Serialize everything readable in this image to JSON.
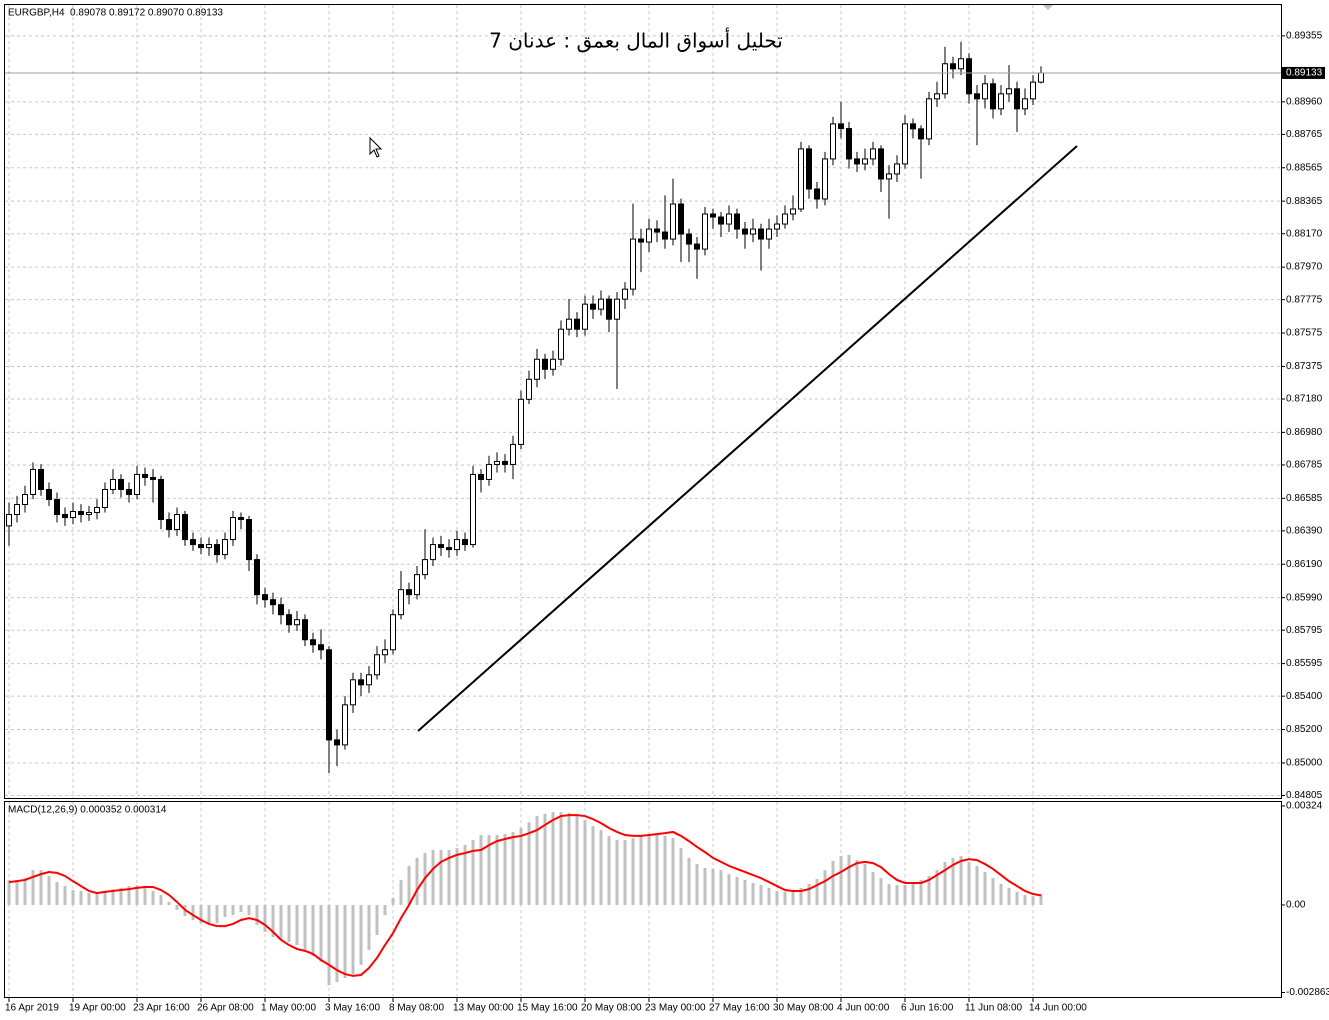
{
  "chart_data": [
    {
      "type": "candlestick",
      "title": "EURGBP,H4  0.89078 0.89172 0.89070 0.89133",
      "annotation": "تحليل أسواق المال بعمق : عدنان 7",
      "categories": [
        "16 Apr 2019",
        null,
        null,
        null,
        null,
        null,
        null,
        null,
        "19 Apr 00:00",
        null,
        null,
        null,
        null,
        null,
        null,
        null,
        "23 Apr 16:00",
        null,
        null,
        null,
        null,
        null,
        null,
        null,
        "26 Apr 08:00",
        null,
        null,
        null,
        null,
        null,
        null,
        null,
        "1 May 00:00",
        null,
        null,
        null,
        null,
        null,
        null,
        null,
        "3 May 16:00",
        null,
        null,
        null,
        null,
        null,
        null,
        null,
        "8 May 08:00",
        null,
        null,
        null,
        null,
        null,
        null,
        null,
        "13 May 00:00",
        null,
        null,
        null,
        null,
        null,
        null,
        null,
        "15 May 16:00",
        null,
        null,
        null,
        null,
        null,
        null,
        null,
        "20 May 08:00",
        null,
        null,
        null,
        null,
        null,
        null,
        null,
        "23 May 00:00",
        null,
        null,
        null,
        null,
        null,
        null,
        null,
        "27 May 16:00",
        null,
        null,
        null,
        null,
        null,
        null,
        null,
        "30 May 08:00",
        null,
        null,
        null,
        null,
        null,
        null,
        null,
        "4 Jun 00:00",
        null,
        null,
        null,
        null,
        null,
        null,
        null,
        "6 Jun 16:00",
        null,
        null,
        null,
        null,
        null,
        null,
        null,
        "11 Jun 08:00",
        null,
        null,
        null,
        null,
        null,
        null,
        null,
        "14 Jun 00:00",
        null
      ],
      "open": [
        0.8642,
        0.86488,
        0.86548,
        0.86608,
        0.86758,
        0.86638,
        0.86578,
        0.86488,
        0.8647,
        0.86506,
        0.86488,
        0.865,
        0.8653,
        0.86638,
        0.86698,
        0.86638,
        0.86608,
        0.86728,
        0.8671,
        0.86698,
        0.86458,
        0.86398,
        0.86488,
        0.86338,
        0.86308,
        0.8629,
        0.86308,
        0.86248,
        0.86338,
        0.8647,
        0.86458,
        0.86218,
        0.86008,
        0.85978,
        0.85948,
        0.85888,
        0.85828,
        0.85858,
        0.85738,
        0.85708,
        0.85678,
        0.85138,
        0.85108,
        0.85348,
        0.85498,
        0.85468,
        0.85528,
        0.85648,
        0.85678,
        0.85888,
        0.86038,
        0.86008,
        0.86128,
        0.86218,
        0.86308,
        0.8629,
        0.86278,
        0.86338,
        0.86308,
        0.86728,
        0.86698,
        0.86788,
        0.86806,
        0.86788,
        0.86908,
        0.87178,
        0.87298,
        0.87418,
        0.87358,
        0.87418,
        0.87598,
        0.87658,
        0.87598,
        0.87748,
        0.87718,
        0.87778,
        0.87658,
        0.87778,
        0.87838,
        0.88138,
        0.8812,
        0.88198,
        0.8818,
        0.88138,
        0.88348,
        0.88168,
        0.88108,
        0.88078,
        0.88288,
        0.8827,
        0.88228,
        0.88288,
        0.88198,
        0.88168,
        0.88198,
        0.88138,
        0.88198,
        0.88228,
        0.88288,
        0.88318,
        0.88678,
        0.88438,
        0.88378,
        0.88618,
        0.88828,
        0.888,
        0.88618,
        0.88588,
        0.88618,
        0.88678,
        0.88498,
        0.88528,
        0.88588,
        0.88828,
        0.88798,
        0.88738,
        0.88978,
        0.89008,
        0.89188,
        0.89158,
        0.89218,
        0.89008,
        0.88978,
        0.89068,
        0.88918,
        0.89008,
        0.89038,
        0.88918,
        0.88978,
        0.89078
      ],
      "high": [
        0.8656,
        0.866,
        0.8666,
        0.868,
        0.8679,
        0.8668,
        0.8662,
        0.8653,
        0.8656,
        0.8655,
        0.8654,
        0.8658,
        0.8668,
        0.8676,
        0.8673,
        0.8668,
        0.8678,
        0.8677,
        0.8676,
        0.8672,
        0.865,
        0.8653,
        0.8651,
        0.8638,
        0.8635,
        0.8635,
        0.8634,
        0.8638,
        0.8651,
        0.865,
        0.8648,
        0.8625,
        0.8605,
        0.8602,
        0.8599,
        0.8592,
        0.8591,
        0.8589,
        0.8578,
        0.858,
        0.857,
        0.852,
        0.854,
        0.8554,
        0.8554,
        0.8558,
        0.857,
        0.8574,
        0.8592,
        0.8615,
        0.8608,
        0.8618,
        0.864,
        0.8635,
        0.8636,
        0.8634,
        0.8639,
        0.8638,
        0.8678,
        0.8676,
        0.8684,
        0.8686,
        0.8685,
        0.8696,
        0.8723,
        0.8735,
        0.8748,
        0.8745,
        0.8747,
        0.8765,
        0.8778,
        0.877,
        0.878,
        0.878,
        0.8783,
        0.878,
        0.8782,
        0.8788,
        0.8835,
        0.882,
        0.8826,
        0.8825,
        0.884,
        0.885,
        0.8838,
        0.882,
        0.8815,
        0.8833,
        0.8832,
        0.883,
        0.8834,
        0.8832,
        0.8824,
        0.8826,
        0.8823,
        0.8826,
        0.8828,
        0.8834,
        0.884,
        0.8872,
        0.887,
        0.8848,
        0.8866,
        0.8887,
        0.8896,
        0.8884,
        0.8866,
        0.8868,
        0.8872,
        0.887,
        0.8858,
        0.8864,
        0.8888,
        0.8886,
        0.8882,
        0.8902,
        0.8908,
        0.8929,
        0.8923,
        0.8932,
        0.8925,
        0.8906,
        0.8912,
        0.891,
        0.8906,
        0.8918,
        0.8908,
        0.8904,
        0.8912,
        0.89172
      ],
      "low": [
        0.863,
        0.8644,
        0.865,
        0.8658,
        0.866,
        0.8654,
        0.8644,
        0.8642,
        0.8643,
        0.8644,
        0.8645,
        0.8646,
        0.865,
        0.8661,
        0.8659,
        0.8656,
        0.8658,
        0.8666,
        0.8656,
        0.864,
        0.8635,
        0.8636,
        0.863,
        0.8627,
        0.8625,
        0.8624,
        0.862,
        0.8622,
        0.863,
        0.864,
        0.8615,
        0.8595,
        0.8593,
        0.8589,
        0.8583,
        0.8578,
        0.8579,
        0.857,
        0.8566,
        0.8562,
        0.8494,
        0.8498,
        0.8508,
        0.853,
        0.854,
        0.8542,
        0.855,
        0.856,
        0.8565,
        0.8586,
        0.8595,
        0.8598,
        0.861,
        0.8618,
        0.8624,
        0.8623,
        0.8624,
        0.8627,
        0.8629,
        0.8662,
        0.8666,
        0.8674,
        0.8674,
        0.867,
        0.8688,
        0.8715,
        0.8725,
        0.873,
        0.8732,
        0.8738,
        0.8756,
        0.8755,
        0.8756,
        0.8766,
        0.8768,
        0.8758,
        0.8724,
        0.8772,
        0.878,
        0.8794,
        0.8806,
        0.8812,
        0.8808,
        0.881,
        0.88,
        0.88,
        0.879,
        0.8804,
        0.882,
        0.8815,
        0.8818,
        0.8814,
        0.8808,
        0.8812,
        0.8795,
        0.8808,
        0.8815,
        0.882,
        0.8825,
        0.883,
        0.8838,
        0.8832,
        0.8834,
        0.8858,
        0.8874,
        0.8856,
        0.8854,
        0.8855,
        0.8858,
        0.8842,
        0.8826,
        0.8848,
        0.8856,
        0.8874,
        0.885,
        0.887,
        0.8893,
        0.8898,
        0.891,
        0.8912,
        0.8895,
        0.887,
        0.8892,
        0.8886,
        0.8888,
        0.8896,
        0.8878,
        0.8888,
        0.8894,
        0.8907
      ],
      "close": [
        0.86488,
        0.86548,
        0.86608,
        0.86758,
        0.86638,
        0.86578,
        0.86488,
        0.8647,
        0.86506,
        0.86488,
        0.865,
        0.8653,
        0.86638,
        0.86698,
        0.86638,
        0.86608,
        0.86728,
        0.8671,
        0.86698,
        0.86458,
        0.86398,
        0.86488,
        0.86338,
        0.86308,
        0.8629,
        0.86308,
        0.86248,
        0.86338,
        0.8647,
        0.86458,
        0.86218,
        0.86008,
        0.85978,
        0.85948,
        0.85888,
        0.85828,
        0.85858,
        0.85738,
        0.85708,
        0.85678,
        0.85138,
        0.85108,
        0.85348,
        0.85498,
        0.85468,
        0.85528,
        0.85648,
        0.85678,
        0.85888,
        0.86038,
        0.86008,
        0.86128,
        0.86218,
        0.86308,
        0.8629,
        0.86278,
        0.86338,
        0.86308,
        0.86728,
        0.86698,
        0.86788,
        0.86806,
        0.86788,
        0.86908,
        0.87178,
        0.87298,
        0.87418,
        0.87358,
        0.87418,
        0.87598,
        0.87658,
        0.87598,
        0.87748,
        0.87718,
        0.87778,
        0.87658,
        0.87778,
        0.87838,
        0.88138,
        0.8812,
        0.88198,
        0.8818,
        0.88138,
        0.88348,
        0.88168,
        0.88108,
        0.88078,
        0.88288,
        0.8827,
        0.88228,
        0.88288,
        0.88198,
        0.88168,
        0.88198,
        0.88138,
        0.88198,
        0.88228,
        0.88288,
        0.88318,
        0.88678,
        0.88438,
        0.88378,
        0.88618,
        0.88828,
        0.888,
        0.88618,
        0.88588,
        0.88618,
        0.88678,
        0.88498,
        0.88528,
        0.88588,
        0.88828,
        0.88798,
        0.88738,
        0.88978,
        0.89008,
        0.89188,
        0.89158,
        0.89218,
        0.89008,
        0.88978,
        0.89068,
        0.88918,
        0.89008,
        0.89038,
        0.88918,
        0.88978,
        0.89078,
        0.89133
      ],
      "colors": {
        "up": "#ffffff",
        "down": "#000000",
        "wick": "#000000"
      },
      "last_price": 0.89133,
      "ylim": [
        0.8479,
        0.8954
      ],
      "yticks": [
        0.89355,
        {
          "value": 0.8896,
          "label": "0.88960"
        },
        0.88765,
        0.88565,
        0.88365,
        {
          "value": 0.8817,
          "label": "0.88170"
        },
        {
          "value": 0.8797,
          "label": "0.87970"
        },
        0.87775,
        0.87575,
        0.87375,
        {
          "value": 0.8718,
          "label": "0.87180"
        },
        {
          "value": 0.8698,
          "label": "0.86980"
        },
        0.86785,
        0.86585,
        {
          "value": 0.8639,
          "label": "0.86390"
        },
        {
          "value": 0.8619,
          "label": "0.86190"
        },
        {
          "value": 0.8599,
          "label": "0.85990"
        },
        0.85795,
        0.85595,
        {
          "value": 0.854,
          "label": "0.85400"
        },
        {
          "value": 0.852,
          "label": "0.85200"
        },
        {
          "value": 0.85,
          "label": "0.85000"
        },
        0.84805
      ],
      "grid": true
    },
    {
      "type": "macd",
      "title": "MACD(12,26,9) 0.000352 0.000314",
      "histogram": {
        "color": "#c0c0c0",
        "values": [
          0.00082,
          0.00082,
          0.00088,
          0.00114,
          0.00114,
          0.00095,
          0.00075,
          0.00062,
          0.00049,
          0.00046,
          0.00039,
          0.00036,
          0.00043,
          0.00052,
          0.00056,
          0.00062,
          0.00065,
          0.00059,
          0.00046,
          0.00033,
          0.0001,
          -0.00016,
          -0.00036,
          -0.00049,
          -0.00059,
          -0.00065,
          -0.00059,
          -0.00039,
          -0.00033,
          -0.00023,
          -0.00033,
          -0.00065,
          -0.00088,
          -0.00105,
          -0.00114,
          -0.00121,
          -0.00131,
          -0.00147,
          -0.00167,
          -0.00186,
          -0.00262,
          -0.00252,
          -0.00239,
          -0.00226,
          -0.00196,
          -0.00147,
          -0.00098,
          -0.00033,
          0.00023,
          0.00082,
          0.00128,
          0.00154,
          0.0017,
          0.0018,
          0.0018,
          0.0018,
          0.00186,
          0.00196,
          0.00213,
          0.00229,
          0.00229,
          0.00229,
          0.00232,
          0.00239,
          0.00252,
          0.00271,
          0.00291,
          0.00298,
          0.00304,
          0.00304,
          0.00301,
          0.00291,
          0.00278,
          0.00258,
          0.00245,
          0.00226,
          0.00213,
          0.00213,
          0.00219,
          0.00226,
          0.00229,
          0.00229,
          0.00226,
          0.00219,
          0.00186,
          0.00154,
          0.00134,
          0.00121,
          0.00118,
          0.00114,
          0.00101,
          0.00092,
          0.00082,
          0.00072,
          0.00065,
          0.00056,
          0.00046,
          0.00043,
          0.00046,
          0.00056,
          0.00069,
          0.00085,
          0.00114,
          0.00144,
          0.0016,
          0.00164,
          0.00147,
          0.00134,
          0.00108,
          0.00088,
          0.00069,
          0.00065,
          0.00065,
          0.00072,
          0.00082,
          0.00095,
          0.00114,
          0.00141,
          0.00154,
          0.0016,
          0.00141,
          0.00128,
          0.00108,
          0.00088,
          0.00069,
          0.00056,
          0.00043,
          0.00033,
          0.00029,
          0.000352
        ]
      },
      "signal": {
        "color": "#ff0000",
        "values": [
          0.00075,
          0.00078,
          0.00082,
          0.00092,
          0.00101,
          0.00108,
          0.00105,
          0.00095,
          0.00078,
          0.00062,
          0.00046,
          0.00039,
          0.00043,
          0.00046,
          0.00049,
          0.00052,
          0.00056,
          0.00059,
          0.00059,
          0.00049,
          0.00033,
          0.0001,
          -0.00016,
          -0.00033,
          -0.00049,
          -0.00062,
          -0.00069,
          -0.00069,
          -0.00062,
          -0.00049,
          -0.00043,
          -0.00049,
          -0.00065,
          -0.00088,
          -0.00114,
          -0.00131,
          -0.00144,
          -0.0015,
          -0.0016,
          -0.0018,
          -0.00196,
          -0.00213,
          -0.00226,
          -0.00232,
          -0.00229,
          -0.00206,
          -0.00173,
          -0.00131,
          -0.00092,
          -0.00043,
          0,
          0.00049,
          0.00088,
          0.00118,
          0.00141,
          0.00154,
          0.00164,
          0.0017,
          0.00177,
          0.0018,
          0.00196,
          0.00209,
          0.00216,
          0.00222,
          0.00226,
          0.00235,
          0.00245,
          0.00262,
          0.00278,
          0.00291,
          0.00294,
          0.00294,
          0.00291,
          0.00281,
          0.00268,
          0.00252,
          0.00239,
          0.00229,
          0.00226,
          0.00226,
          0.00229,
          0.00232,
          0.00235,
          0.00239,
          0.00226,
          0.00209,
          0.0019,
          0.00173,
          0.00154,
          0.00141,
          0.00128,
          0.00118,
          0.00108,
          0.00098,
          0.00088,
          0.00075,
          0.00062,
          0.00049,
          0.00046,
          0.00046,
          0.00052,
          0.00065,
          0.00078,
          0.00095,
          0.00108,
          0.00124,
          0.00137,
          0.00141,
          0.00137,
          0.00124,
          0.00101,
          0.00082,
          0.00072,
          0.00072,
          0.00072,
          0.00082,
          0.00098,
          0.00114,
          0.00131,
          0.00144,
          0.0015,
          0.00147,
          0.00134,
          0.00118,
          0.00098,
          0.00078,
          0.00062,
          0.00046,
          0.00036,
          0.000314
        ]
      },
      "ylim": [
        -0.00301,
        0.00337
      ],
      "yticks": [
        0.00324,
        {
          "value": 0,
          "label": "0.00"
        },
        -0.002863
      ],
      "grid": false
    }
  ]
}
